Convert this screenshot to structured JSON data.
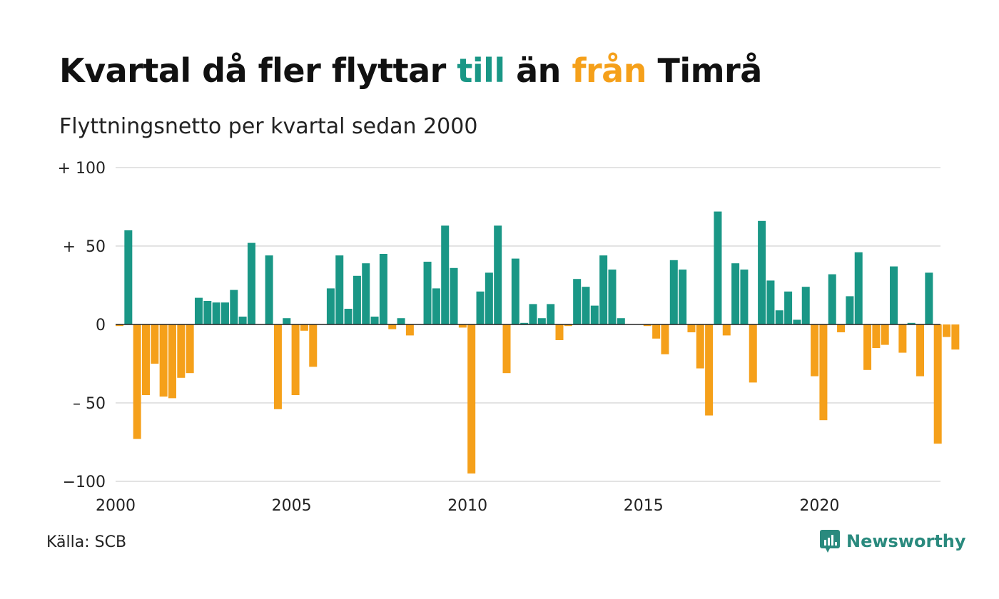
{
  "title": {
    "part1": "Kvartal då fler flyttar ",
    "pos": "till",
    "part2": " än ",
    "neg": "från",
    "part3": " Timrå"
  },
  "subtitle": "Flyttningsnetto per kvartal sedan 2000",
  "source": "Källa: SCB",
  "brand": "Newsworthy",
  "colors": {
    "positive": "#1a9786",
    "negative": "#f5a01a",
    "grid": "#e3e3e3",
    "zero": "#222222"
  },
  "chart_data": {
    "type": "bar",
    "xlabel": "",
    "ylabel": "",
    "ylim": [
      -100,
      100
    ],
    "yticks": [
      {
        "value": 100,
        "label": "+ 100"
      },
      {
        "value": 50,
        "label": "+  50"
      },
      {
        "value": 0,
        "label": "0"
      },
      {
        "value": -50,
        "label": "– 50"
      },
      {
        "value": -100,
        "label": "−100"
      }
    ],
    "xticks": [
      {
        "year": 2000,
        "label": "2000"
      },
      {
        "year": 2005,
        "label": "2005"
      },
      {
        "year": 2010,
        "label": "2010"
      },
      {
        "year": 2015,
        "label": "2015"
      },
      {
        "year": 2020,
        "label": "2020"
      }
    ],
    "grid": true,
    "legend": "none",
    "first_quarter": "2000 Q1",
    "values": [
      -1,
      60,
      -73,
      -45,
      -25,
      -46,
      -47,
      -34,
      -31,
      17,
      15,
      14,
      14,
      22,
      5,
      52,
      0,
      44,
      -54,
      4,
      -45,
      -4,
      -27,
      0,
      23,
      44,
      10,
      31,
      39,
      5,
      45,
      -3,
      4,
      -7,
      0,
      40,
      23,
      63,
      36,
      -2,
      -95,
      21,
      33,
      63,
      -31,
      42,
      1,
      13,
      4,
      13,
      -10,
      -1,
      29,
      24,
      12,
      44,
      35,
      4,
      0,
      0,
      -1,
      -9,
      -19,
      41,
      35,
      -5,
      -28,
      -58,
      72,
      -7,
      39,
      35,
      -37,
      66,
      28,
      9,
      21,
      3,
      24,
      -33,
      -61,
      32,
      -5,
      18,
      46,
      -29,
      -15,
      -13,
      37,
      -18,
      1,
      -33,
      33,
      -76,
      -8,
      -16
    ]
  }
}
